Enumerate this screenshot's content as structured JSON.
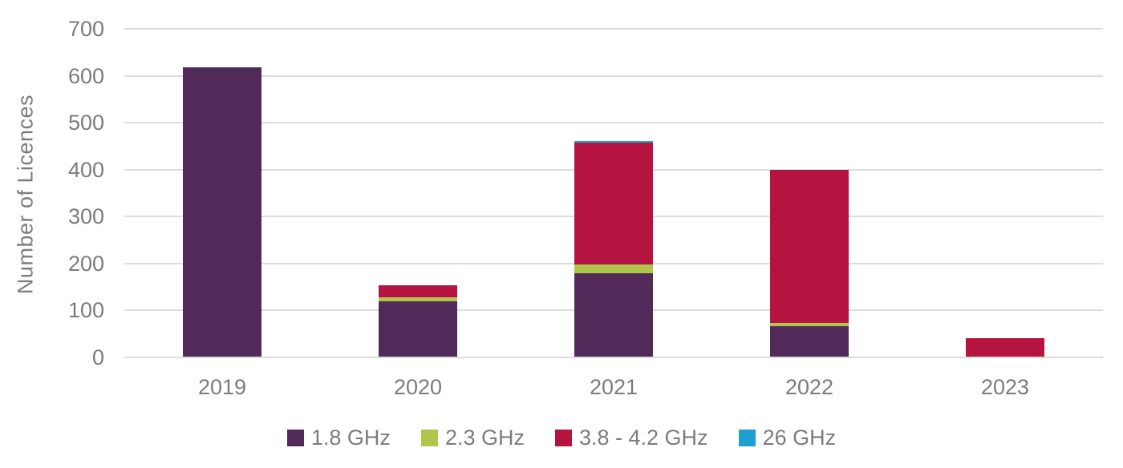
{
  "chart_data": {
    "type": "bar",
    "stacked": true,
    "title": "",
    "ylabel": "Number of Licences",
    "xlabel": "",
    "categories": [
      "2019",
      "2020",
      "2021",
      "2022",
      "2023"
    ],
    "series": [
      {
        "name": "1.8 GHz",
        "color": "#522a5a",
        "values": [
          618,
          118,
          178,
          65,
          0
        ]
      },
      {
        "name": "2.3 GHz",
        "color": "#aec64b",
        "values": [
          0,
          10,
          20,
          8,
          0
        ]
      },
      {
        "name": "3.8 - 4.2 GHz",
        "color": "#b51441",
        "values": [
          0,
          25,
          260,
          327,
          40
        ]
      },
      {
        "name": "26 GHz",
        "color": "#1e9fd0",
        "values": [
          0,
          0,
          3,
          0,
          0
        ]
      }
    ],
    "ylim": [
      0,
      700
    ],
    "ytick_interval": 100,
    "grid": true,
    "legend_position": "bottom"
  },
  "colors": {
    "grid": "#dddcdc",
    "axis_text": "#7c7c7c",
    "background": "#ffffff"
  }
}
